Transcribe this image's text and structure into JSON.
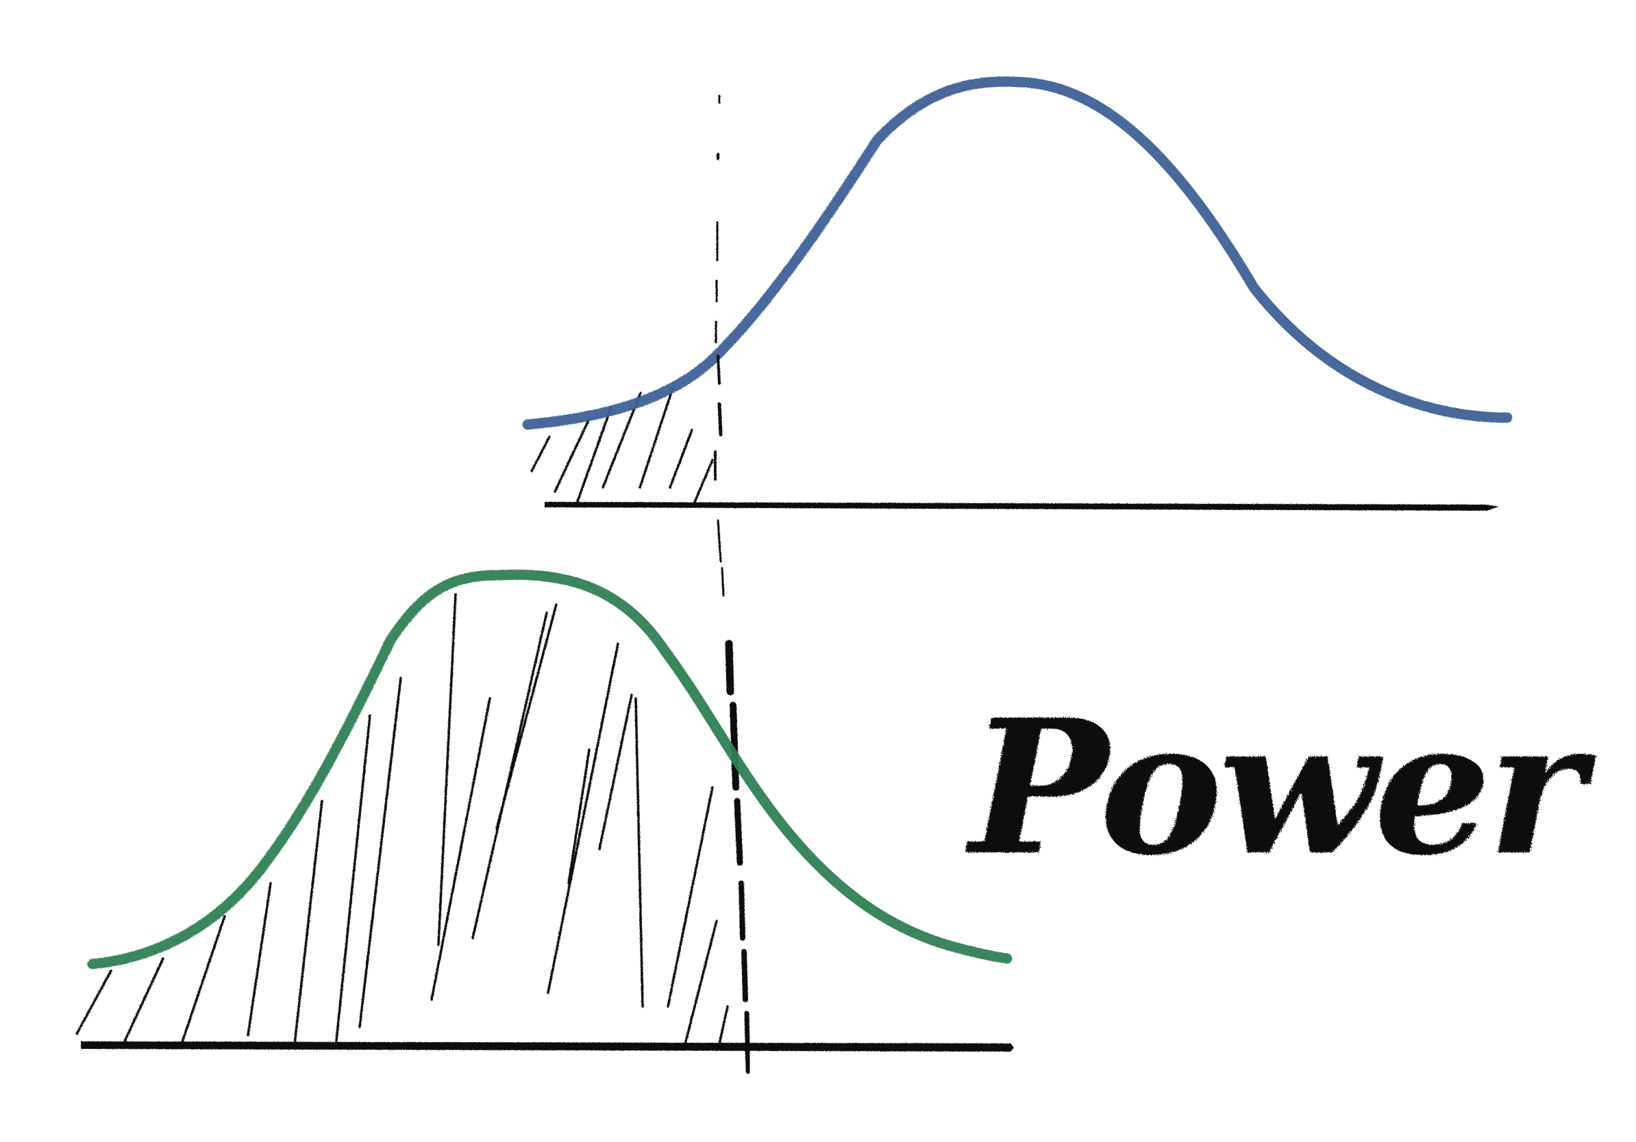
{
  "label": {
    "text": "Power"
  },
  "colors": {
    "background": "#ffffff",
    "null_curve": "#3e5f96",
    "alt_curve": "#2f7f54",
    "ink": "#111111"
  },
  "diagram": {
    "description_type": "hand-drawn power diagram",
    "null_distribution": {
      "color_key": "null_curve",
      "tail_shaded": true
    },
    "alternative_distribution": {
      "color_key": "alt_curve",
      "area_shaded": true
    },
    "critical_line": {
      "style": "dashed"
    }
  }
}
